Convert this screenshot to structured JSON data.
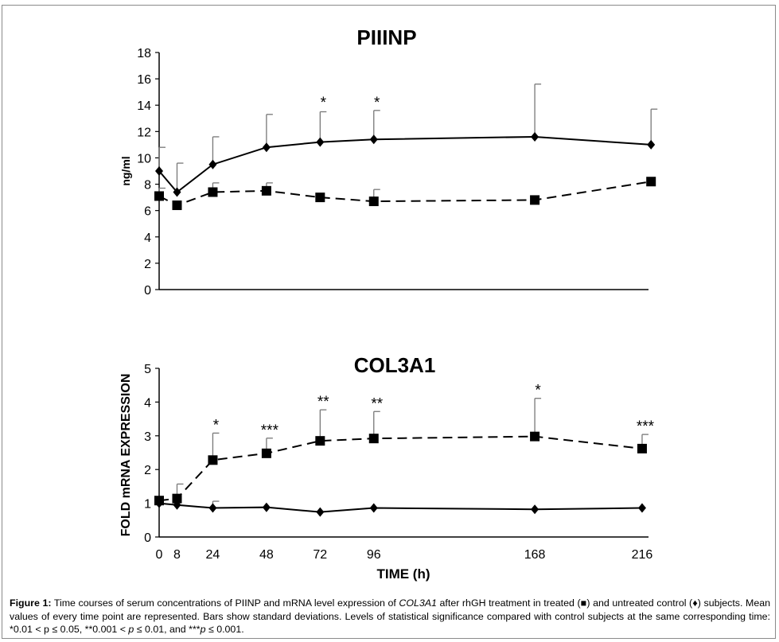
{
  "chart_data": [
    {
      "type": "line",
      "title": "PIIINP",
      "ylabel": "ng/ml",
      "xlabel": "",
      "ylim": [
        0,
        18
      ],
      "yticks": [
        "0",
        "2",
        "4",
        "6",
        "8",
        "10",
        "12",
        "14",
        "16",
        "18"
      ],
      "xlim": [
        0,
        222
      ],
      "grid": false,
      "series": [
        {
          "style": "solid",
          "marker": "diamond",
          "x": [
            0,
            8,
            24,
            48,
            72,
            96,
            168,
            220
          ],
          "y": [
            9.0,
            7.4,
            9.5,
            10.8,
            11.2,
            11.4,
            11.6,
            11.0
          ],
          "error": [
            1.8,
            2.2,
            2.1,
            2.5,
            2.3,
            2.2,
            4.0,
            2.7
          ]
        },
        {
          "style": "dashed",
          "marker": "square",
          "x": [
            0,
            8,
            24,
            48,
            72,
            96,
            168,
            220
          ],
          "y": [
            7.1,
            6.4,
            7.4,
            7.5,
            7.0,
            6.7,
            6.8,
            8.2
          ],
          "error": [
            0.6,
            0.0,
            0.7,
            0.6,
            0.0,
            0.9,
            0.0,
            0.0
          ]
        }
      ],
      "annotations": [
        {
          "x": 72,
          "y": 13.6,
          "text": "*"
        },
        {
          "x": 96,
          "y": 13.6,
          "text": "*"
        }
      ]
    },
    {
      "type": "line",
      "title": "COL3A1",
      "ylabel": "FOLD mRNA EXPRESSION",
      "xlabel": "TIME (h)",
      "ylim": [
        0,
        5
      ],
      "yticks": [
        "0",
        "1",
        "2",
        "3",
        "4",
        "5"
      ],
      "xlim": [
        0,
        222
      ],
      "xticks": [
        {
          "x": 0,
          "label": "0"
        },
        {
          "x": 8,
          "label": "8"
        },
        {
          "x": 24,
          "label": "24"
        },
        {
          "x": 48,
          "label": "48"
        },
        {
          "x": 72,
          "label": "72"
        },
        {
          "x": 96,
          "label": "96"
        },
        {
          "x": 168,
          "label": "168"
        },
        {
          "x": 216,
          "label": "216"
        }
      ],
      "grid": false,
      "series": [
        {
          "style": "solid",
          "marker": "diamond",
          "x": [
            0,
            8,
            24,
            48,
            72,
            96,
            168,
            216
          ],
          "y": [
            1.0,
            0.95,
            0.86,
            0.88,
            0.74,
            0.86,
            0.82,
            0.86
          ],
          "error": [
            0.0,
            0.0,
            0.2,
            0.0,
            0.0,
            0.0,
            0.0,
            0.0
          ]
        },
        {
          "style": "dashed",
          "marker": "square",
          "x": [
            0,
            8,
            24,
            48,
            72,
            96,
            168,
            216
          ],
          "y": [
            1.08,
            1.14,
            2.28,
            2.48,
            2.85,
            2.92,
            2.98,
            2.62
          ],
          "error": [
            0.0,
            0.43,
            0.8,
            0.45,
            0.92,
            0.8,
            1.13,
            0.42
          ]
        }
      ],
      "annotations": [
        {
          "x": 24,
          "y": 3.08,
          "text": "*"
        },
        {
          "x": 48,
          "y": 2.93,
          "text": "***"
        },
        {
          "x": 72,
          "y": 3.77,
          "text": "**"
        },
        {
          "x": 96,
          "y": 3.72,
          "text": "**"
        },
        {
          "x": 168,
          "y": 4.11,
          "text": "*"
        },
        {
          "x": 216,
          "y": 3.04,
          "text": "***"
        }
      ]
    }
  ],
  "caption": {
    "label": "Figure 1:",
    "text_1": " Time courses of serum concentrations of PIINP and mRNA level expression of ",
    "gene": "COL3A1",
    "text_2": " after rhGH treatment in treated (■) and untreated control (♦) subjects. Mean values of every time point are represented. Bars show standard deviations. Levels of statistical significance compared with control subjects at the same corresponding time: *0.01 < p ≤ 0.05, **0.001 < ",
    "p1": "p",
    "text_3": " ≤ 0.01, and ***",
    "p2": "p",
    "text_4": " ≤ 0.001."
  }
}
